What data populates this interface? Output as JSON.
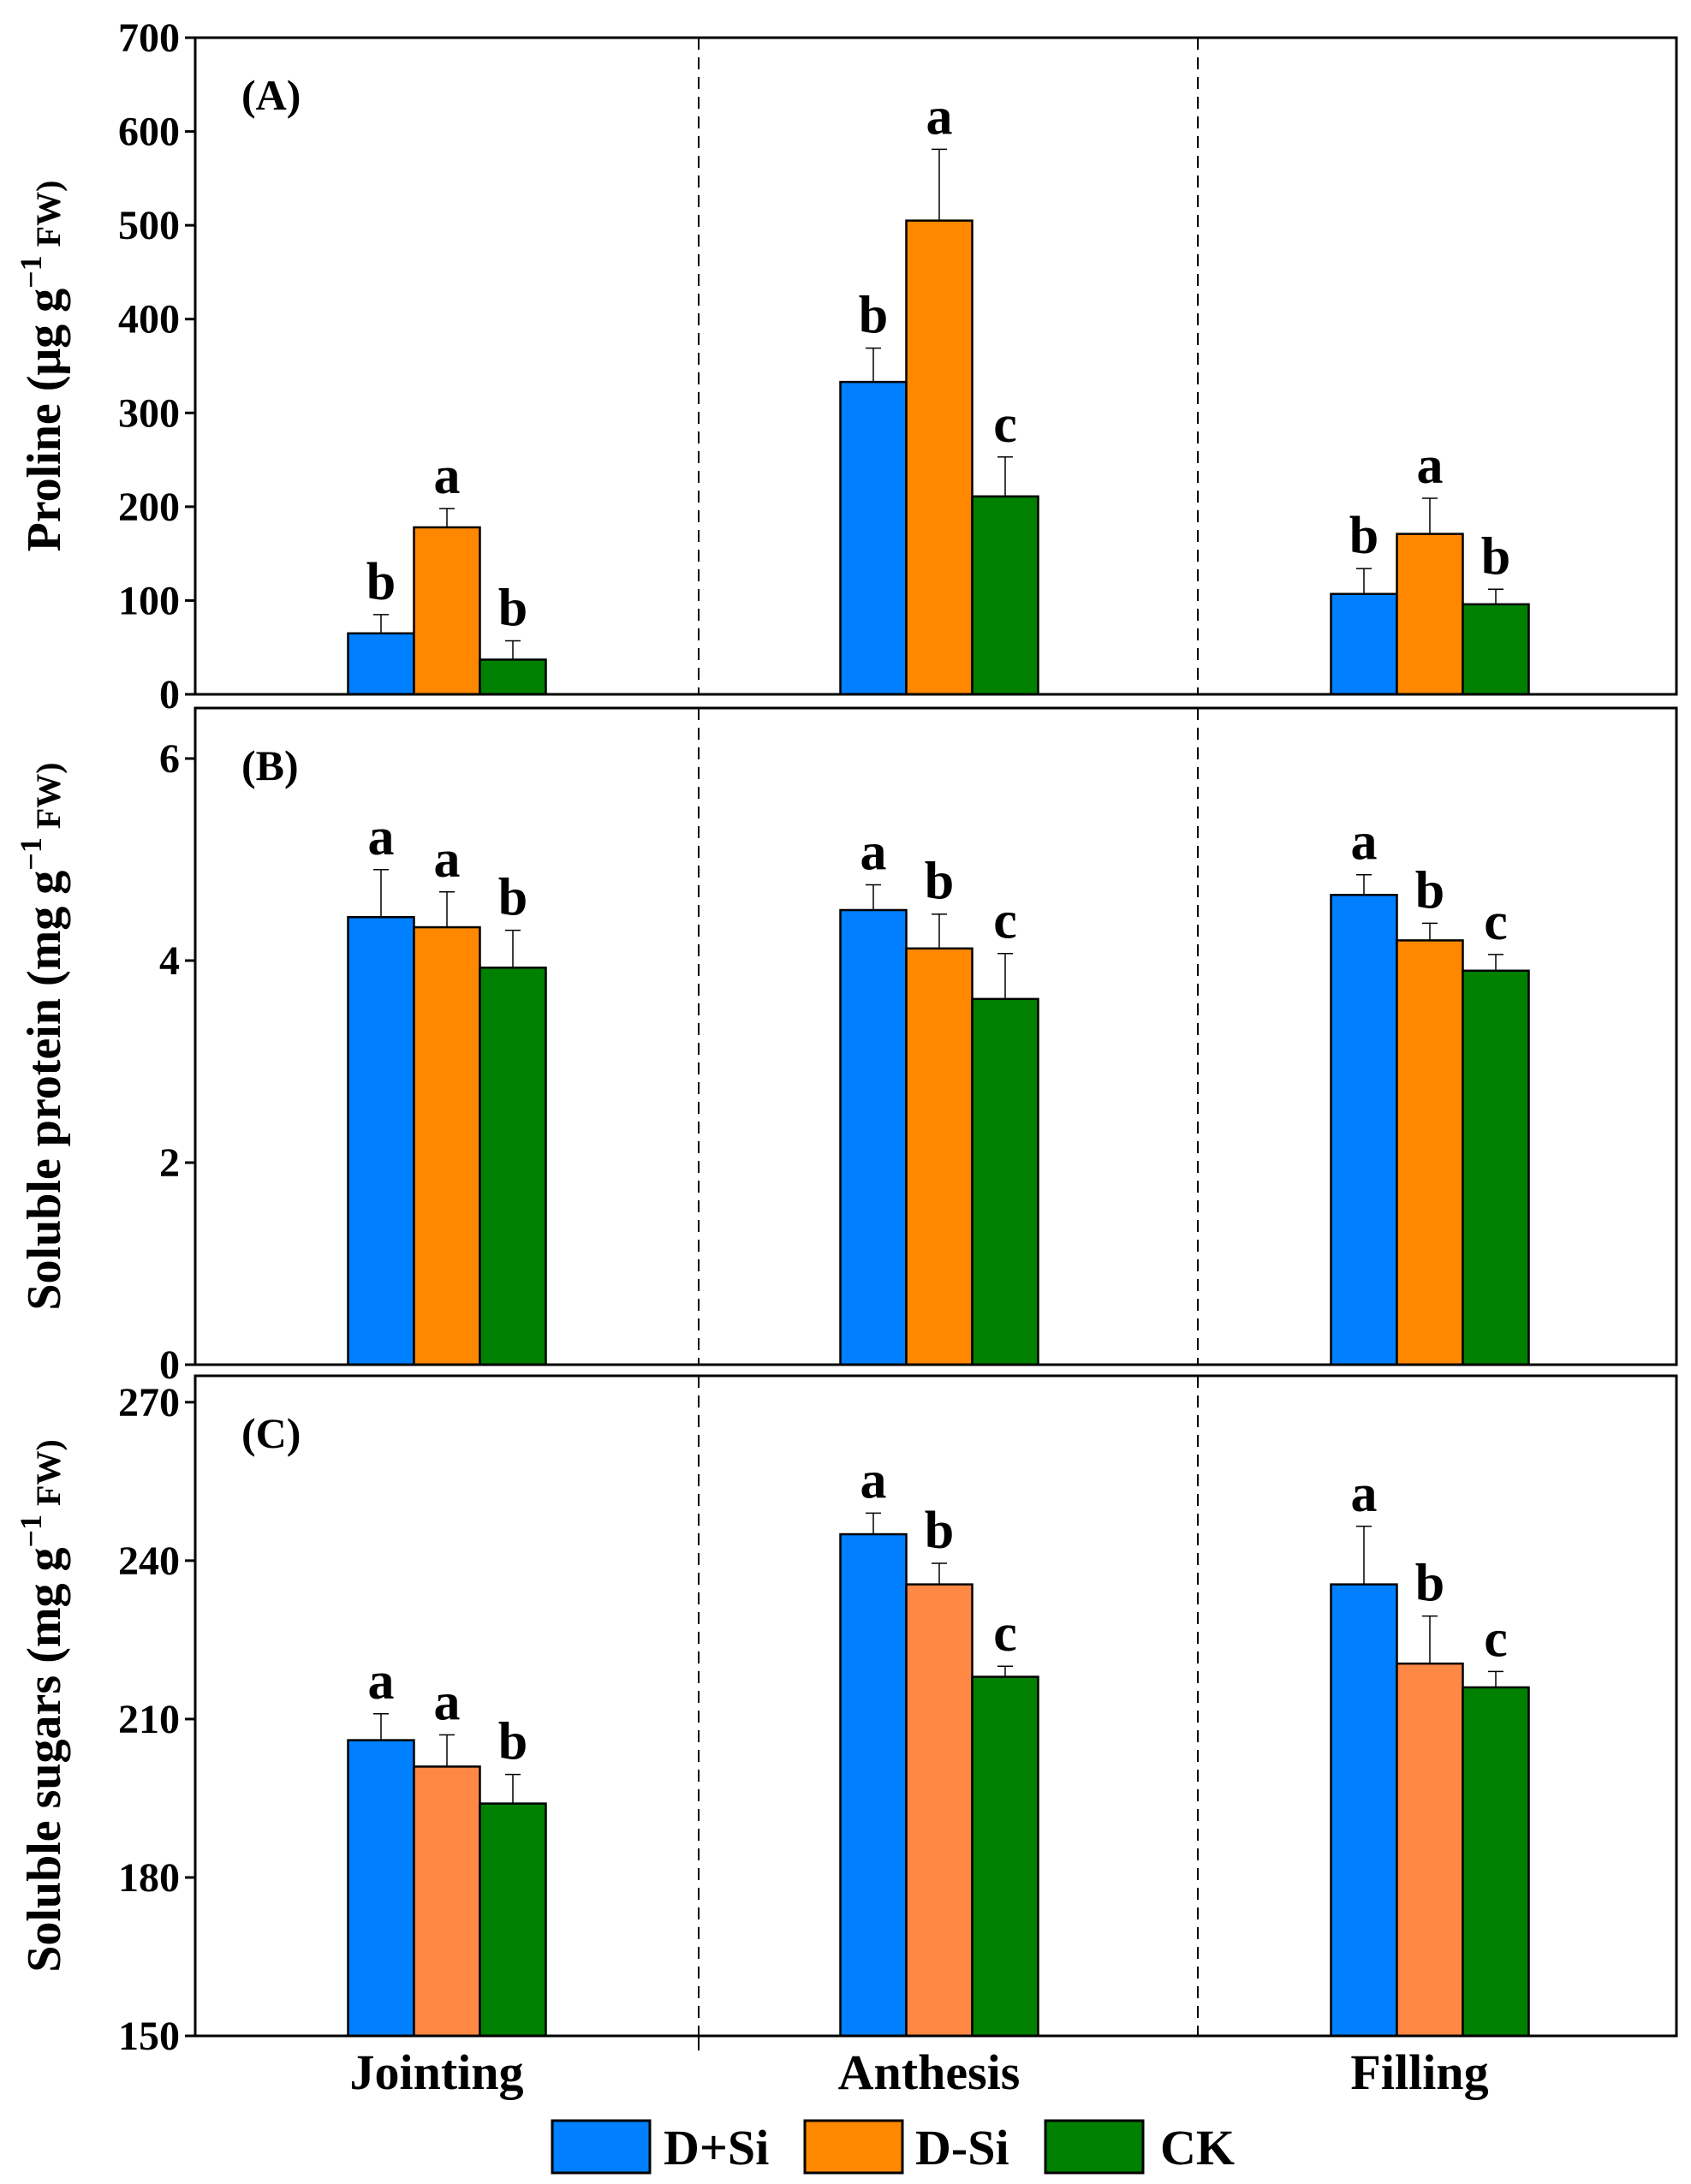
{
  "chart_data": {
    "type": "bar",
    "categories": [
      "Jointing",
      "Anthesis",
      "Filling"
    ],
    "legend": {
      "placement": "bottom-center",
      "entries": [
        {
          "name": "D+Si",
          "color": "#0080FF"
        },
        {
          "name": "D-Si",
          "color": "#FF8800"
        },
        {
          "name": "CK",
          "color": "#008000"
        }
      ]
    },
    "panels": [
      {
        "label": "(A)",
        "ylabel_main": "Proline (μg g",
        "ylabel_sup": "−1",
        "ylabel_end": " FW)",
        "ylim": [
          0,
          700
        ],
        "yticks": [
          0,
          100,
          200,
          300,
          400,
          500,
          600,
          700
        ],
        "colors": [
          "#0080FF",
          "#FF8800",
          "#008000"
        ],
        "series": [
          {
            "name": "D+Si",
            "values": [
              65,
              333,
              107
            ],
            "errors": [
              20,
              36,
              27
            ],
            "letters": [
              "b",
              "b",
              "b"
            ]
          },
          {
            "name": "D-Si",
            "values": [
              178,
              505,
              171
            ],
            "errors": [
              20,
              76,
              38
            ],
            "letters": [
              "a",
              "a",
              "a"
            ]
          },
          {
            "name": "CK",
            "values": [
              37,
              211,
              96
            ],
            "errors": [
              20,
              42,
              16
            ],
            "letters": [
              "b",
              "c",
              "b"
            ]
          }
        ]
      },
      {
        "label": "(B)",
        "ylabel_main": "Soluble protein  (mg g",
        "ylabel_sup": "−1",
        "ylabel_end": " FW)",
        "ylim": [
          0,
          6.5
        ],
        "yticks": [
          0,
          2,
          4,
          6
        ],
        "colors": [
          "#0080FF",
          "#FF8800",
          "#008000"
        ],
        "series": [
          {
            "name": "D+Si",
            "values": [
              4.43,
              4.5,
              4.65
            ],
            "errors": [
              0.47,
              0.25,
              0.2
            ],
            "letters": [
              "a",
              "a",
              "a"
            ]
          },
          {
            "name": "D-Si",
            "values": [
              4.33,
              4.12,
              4.2
            ],
            "errors": [
              0.35,
              0.34,
              0.17
            ],
            "letters": [
              "a",
              "b",
              "b"
            ]
          },
          {
            "name": "CK",
            "values": [
              3.93,
              3.62,
              3.9
            ],
            "errors": [
              0.37,
              0.45,
              0.16
            ],
            "letters": [
              "b",
              "c",
              "c"
            ]
          }
        ]
      },
      {
        "label": "(C)",
        "ylabel_main": "Soluble sugars  (mg g",
        "ylabel_sup": "−1",
        "ylabel_end": " FW)",
        "ylim": [
          150,
          275
        ],
        "yticks": [
          150,
          180,
          210,
          240,
          270
        ],
        "colors": [
          "#0080FF",
          "#FF8844",
          "#008000"
        ],
        "series": [
          {
            "name": "D+Si",
            "values": [
              206,
              245,
              235.5
            ],
            "errors": [
              5,
              4,
              11
            ],
            "letters": [
              "a",
              "a",
              "a"
            ]
          },
          {
            "name": "D-Si",
            "values": [
              201,
              235.5,
              220.5
            ],
            "errors": [
              6,
              4,
              9
            ],
            "letters": [
              "a",
              "b",
              "b"
            ]
          },
          {
            "name": "CK",
            "values": [
              194,
              218,
              216
            ],
            "errors": [
              5.5,
              2,
              3
            ],
            "letters": [
              "b",
              "c",
              "c"
            ]
          }
        ]
      }
    ]
  }
}
